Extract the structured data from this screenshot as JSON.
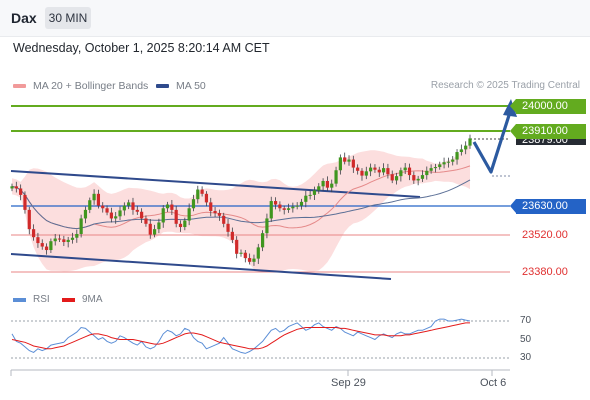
{
  "header": {
    "symbol": "Dax",
    "timeframe": "30 MIN"
  },
  "datetime": "Wednesday, October 1, 2025 8:20:14 AM CET",
  "legend": {
    "ma20_bb": "MA 20 + Bollinger Bands",
    "ma50": "MA 50",
    "credit": "Research © 2025 Trading Central"
  },
  "colors": {
    "target_line": "#63ab1f",
    "pivot_line": "#2463c6",
    "support_line": "#e88686",
    "candle_up": "#40961f",
    "candle_down": "#d02a2a",
    "bollinger_band": "#fcdede",
    "ma20": "#e58a8a",
    "ma50": "#5b6f96",
    "channel": "#2f4a8c",
    "rsi": "#5b8ed6",
    "rsi_ma": "#e31b1b",
    "arrow": "#2c5aa0"
  },
  "price_labels": {
    "t2": "24000.00",
    "t1": "23910.00",
    "last": "23879.00",
    "pivot": "23630.00",
    "s1": "23520.00",
    "s2": "23380.00"
  },
  "rsi_panel": {
    "legend_rsi": "RSI",
    "legend_ma": "9MA",
    "ticks": [
      "70",
      "50",
      "30"
    ]
  },
  "x_axis": {
    "labels": [
      "Sep 29",
      "Oct 6"
    ]
  },
  "chart_data": [
    {
      "type": "candlestick",
      "title": "",
      "levels": {
        "target_2": 24000,
        "target_1": 23910,
        "last": 23879,
        "pivot": 23630,
        "support_1": 23520,
        "support_2": 23380
      },
      "ylim": [
        23340,
        24050
      ],
      "closes": [
        23700,
        23692,
        23668,
        23612,
        23540,
        23510,
        23488,
        23475,
        23462,
        23495,
        23505,
        23502,
        23492,
        23500,
        23508,
        23522,
        23580,
        23612,
        23648,
        23672,
        23628,
        23618,
        23602,
        23580,
        23588,
        23610,
        23628,
        23640,
        23612,
        23605,
        23580,
        23560,
        23520,
        23540,
        23565,
        23618,
        23632,
        23612,
        23560,
        23548,
        23572,
        23618,
        23652,
        23688,
        23672,
        23640,
        23608,
        23600,
        23590,
        23560,
        23530,
        23500,
        23448,
        23452,
        23432,
        23418,
        23430,
        23472,
        23525,
        23580,
        23645,
        23632,
        23618,
        23612,
        23618,
        23624,
        23628,
        23642,
        23665,
        23668,
        23685,
        23700,
        23720,
        23695,
        23710,
        23760,
        23808,
        23792,
        23800,
        23770,
        23758,
        23740,
        23756,
        23770,
        23762,
        23752,
        23768,
        23745,
        23722,
        23738,
        23760,
        23770,
        23742,
        23722,
        23728,
        23742,
        23758,
        23768,
        23772,
        23782,
        23790,
        23792,
        23800,
        23828,
        23838,
        23852,
        23879
      ]
    },
    {
      "type": "line",
      "title": "RSI",
      "ylim": [
        20,
        80
      ],
      "series": [
        {
          "name": "RSI",
          "values": [
            56,
            48,
            46,
            42,
            38,
            36,
            40,
            38,
            40,
            44,
            45,
            46,
            47,
            52,
            55,
            58,
            63,
            62,
            58,
            54,
            50,
            52,
            48,
            46,
            48,
            54,
            52,
            49,
            46,
            44,
            48,
            42,
            40,
            42,
            48,
            56,
            60,
            58,
            54,
            56,
            62,
            60,
            52,
            48,
            46,
            40,
            42,
            44,
            46,
            52,
            46,
            40,
            38,
            36,
            35,
            37,
            40,
            44,
            48,
            54,
            60,
            62,
            58,
            60,
            64,
            66,
            68,
            64,
            60,
            62,
            66,
            68,
            64,
            62,
            60,
            64,
            62,
            58,
            56,
            54,
            58,
            56,
            54,
            52,
            50,
            54,
            56,
            54,
            52,
            56,
            58,
            56,
            56,
            58,
            60,
            60,
            62,
            64,
            70,
            72,
            72,
            70,
            70,
            71,
            72,
            71,
            70
          ]
        },
        {
          "name": "9MA",
          "values": [
            50,
            49,
            48,
            47,
            45,
            43,
            42,
            41,
            40,
            40,
            41,
            42,
            43,
            45,
            47,
            49,
            51,
            53,
            55,
            56,
            56,
            55,
            54,
            52,
            51,
            50,
            50,
            50,
            50,
            49,
            48,
            47,
            46,
            45,
            45,
            46,
            48,
            50,
            52,
            54,
            56,
            57,
            57,
            56,
            55,
            53,
            51,
            49,
            47,
            46,
            45,
            44,
            43,
            42,
            41,
            40,
            40,
            40,
            41,
            43,
            46,
            49,
            52,
            55,
            57,
            59,
            61,
            62,
            63,
            63,
            63,
            63,
            63,
            63,
            63,
            63,
            62,
            62,
            61,
            60,
            59,
            58,
            57,
            56,
            55,
            55,
            55,
            54,
            54,
            54,
            54,
            55,
            55,
            56,
            57,
            58,
            59,
            60,
            61,
            62,
            63,
            64,
            65,
            66,
            67,
            68,
            68
          ]
        }
      ]
    }
  ]
}
